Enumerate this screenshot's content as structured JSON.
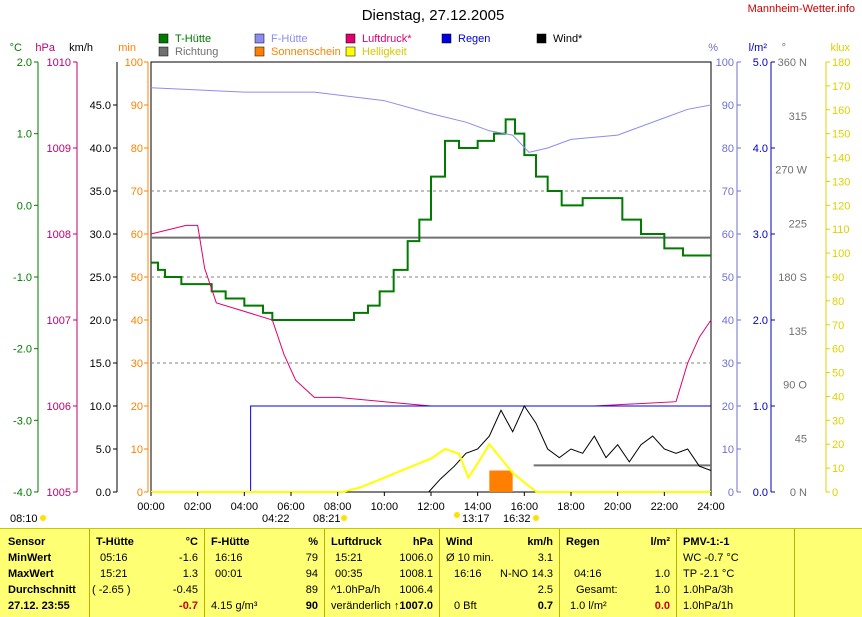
{
  "header": {
    "title": "Dienstag, 27.12.2005",
    "site": "Mannheim-Wetter.info"
  },
  "legend": [
    {
      "label": "T-Hütte",
      "color": "#007a00"
    },
    {
      "label": "Richtung",
      "color": "#707070"
    },
    {
      "label": "F-Hütte",
      "color": "#8c8cf0"
    },
    {
      "label": "Sonnenschein",
      "color": "#ff8000"
    },
    {
      "label": "Luftdruck*",
      "color": "#e0006e"
    },
    {
      "label": "Helligkeit",
      "color": "#ffff00"
    },
    {
      "label": "Regen",
      "color": "#0000e0"
    },
    {
      "label": "Wind*",
      "color": "#000000"
    }
  ],
  "axes": {
    "celsius": {
      "unit": "°C",
      "ticks": [
        "2.0",
        "1.0",
        "0.0",
        "-1.0",
        "-2.0",
        "-3.0",
        "-4.0"
      ],
      "color": "#007a00"
    },
    "hpa": {
      "unit": "hPa",
      "ticks": [
        "1010",
        "1009",
        "1008",
        "1007",
        "1006",
        "1005"
      ],
      "color": "#c00070"
    },
    "kmh": {
      "unit": "km/h",
      "ticks": [
        "45.0",
        "40.0",
        "35.0",
        "30.0",
        "25.0",
        "20.0",
        "15.0",
        "10.0",
        "5.0",
        "0.0"
      ],
      "color": "#000000"
    },
    "min": {
      "unit": "min",
      "ticks": [
        "100",
        "90",
        "80",
        "70",
        "60",
        "50",
        "40",
        "30",
        "20",
        "10",
        "0"
      ],
      "color": "#ff8000"
    },
    "pct": {
      "unit": "%",
      "ticks": [
        "100",
        "90",
        "80",
        "70",
        "60",
        "50",
        "40",
        "30",
        "20",
        "10",
        "0"
      ],
      "color": "#7070d0"
    },
    "lm2": {
      "unit": "l/m²",
      "ticks": [
        "5.0",
        "4.0",
        "3.0",
        "2.0",
        "1.0",
        "0.0"
      ],
      "color": "#0000c0"
    },
    "deg": {
      "unit": "°",
      "ticks": [
        "360 N",
        "315",
        "270 W",
        "225",
        "180 S",
        "135",
        "90 O",
        "45",
        "0 N"
      ],
      "color": "#707070"
    },
    "klux": {
      "unit": "klux",
      "ticks": [
        "180",
        "170",
        "160",
        "150",
        "140",
        "130",
        "120",
        "110",
        "100",
        "90",
        "80",
        "70",
        "60",
        "50",
        "40",
        "30",
        "20",
        "10",
        "0"
      ],
      "color": "#e0d000"
    },
    "time_ticks": [
      "00:00",
      "02:00",
      "04:00",
      "06:00",
      "08:00",
      "10:00",
      "12:00",
      "14:00",
      "16:00",
      "18:00",
      "20:00",
      "22:00",
      "24:00"
    ]
  },
  "sun_markers": {
    "civil_dawn": "08:10",
    "sunrise": "08:21",
    "sunset": "16:32",
    "rain_start": "04:22",
    "solar_noon": "13:17"
  },
  "chart_data": {
    "type": "line",
    "x_unit": "hours",
    "x_range": [
      0,
      24
    ],
    "series": [
      {
        "name": "T-Hütte",
        "axis": "celsius",
        "range": [
          -4,
          2
        ],
        "points": [
          [
            0,
            -0.8
          ],
          [
            0.3,
            -0.9
          ],
          [
            0.6,
            -1.0
          ],
          [
            1.0,
            -1.0
          ],
          [
            1.3,
            -1.1
          ],
          [
            2.0,
            -1.1
          ],
          [
            2.6,
            -1.2
          ],
          [
            3.2,
            -1.3
          ],
          [
            4.0,
            -1.4
          ],
          [
            4.8,
            -1.5
          ],
          [
            5.2,
            -1.6
          ],
          [
            6.0,
            -1.6
          ],
          [
            7.0,
            -1.6
          ],
          [
            8.0,
            -1.6
          ],
          [
            8.7,
            -1.5
          ],
          [
            9.3,
            -1.4
          ],
          [
            9.8,
            -1.2
          ],
          [
            10.4,
            -0.9
          ],
          [
            11.0,
            -0.5
          ],
          [
            11.5,
            -0.2
          ],
          [
            12.0,
            0.4
          ],
          [
            12.6,
            0.9
          ],
          [
            13.2,
            0.8
          ],
          [
            14.0,
            0.9
          ],
          [
            14.7,
            1.0
          ],
          [
            15.2,
            1.2
          ],
          [
            15.6,
            1.0
          ],
          [
            16.0,
            0.7
          ],
          [
            16.5,
            0.4
          ],
          [
            17.0,
            0.2
          ],
          [
            17.6,
            0.0
          ],
          [
            18.5,
            0.1
          ],
          [
            19.5,
            0.1
          ],
          [
            20.2,
            -0.2
          ],
          [
            21.0,
            -0.4
          ],
          [
            22.0,
            -0.6
          ],
          [
            22.8,
            -0.7
          ],
          [
            24,
            -0.7
          ]
        ]
      },
      {
        "name": "F-Hütte",
        "axis": "pct",
        "range": [
          0,
          100
        ],
        "points": [
          [
            0,
            94
          ],
          [
            4,
            93
          ],
          [
            7,
            93
          ],
          [
            10,
            91
          ],
          [
            12,
            88
          ],
          [
            13.5,
            86
          ],
          [
            14.5,
            84
          ],
          [
            15.5,
            83
          ],
          [
            16.2,
            79
          ],
          [
            17.0,
            80
          ],
          [
            18,
            82
          ],
          [
            20,
            83
          ],
          [
            22,
            87
          ],
          [
            23,
            89
          ],
          [
            24,
            90
          ]
        ]
      },
      {
        "name": "Luftdruck*",
        "axis": "hpa",
        "range": [
          1005,
          1010
        ],
        "points": [
          [
            0,
            1008.0
          ],
          [
            1.5,
            1008.1
          ],
          [
            2.0,
            1008.1
          ],
          [
            2.3,
            1007.6
          ],
          [
            2.8,
            1007.2
          ],
          [
            4.0,
            1007.1
          ],
          [
            5.2,
            1007.0
          ],
          [
            5.7,
            1006.6
          ],
          [
            6.2,
            1006.3
          ],
          [
            7.0,
            1006.1
          ],
          [
            8.0,
            1006.1
          ],
          [
            10.0,
            1006.05
          ],
          [
            12.0,
            1006.0
          ],
          [
            14.0,
            1006.0
          ],
          [
            17.0,
            1006.0
          ],
          [
            19.0,
            1006.0
          ],
          [
            22.5,
            1006.05
          ],
          [
            23.0,
            1006.5
          ],
          [
            23.5,
            1006.8
          ],
          [
            24,
            1007.0
          ]
        ]
      },
      {
        "name": "Regen",
        "axis": "lm2",
        "range": [
          0,
          5
        ],
        "points": [
          [
            0,
            0
          ],
          [
            4.22,
            0
          ],
          [
            4.27,
            1.0
          ],
          [
            24,
            1.0
          ]
        ]
      },
      {
        "name": "Wind*",
        "axis": "kmh",
        "range": [
          0,
          50
        ],
        "points": [
          [
            11.9,
            0
          ],
          [
            12.4,
            1.5
          ],
          [
            13.0,
            3.0
          ],
          [
            13.5,
            4.5
          ],
          [
            14.0,
            5.0
          ],
          [
            14.5,
            6.5
          ],
          [
            15.0,
            9.5
          ],
          [
            15.5,
            7.0
          ],
          [
            16.0,
            10.0
          ],
          [
            16.5,
            8.0
          ],
          [
            17.0,
            5.0
          ],
          [
            17.5,
            4.0
          ],
          [
            18.0,
            5.0
          ],
          [
            18.5,
            4.5
          ],
          [
            19.0,
            6.5
          ],
          [
            19.5,
            4.0
          ],
          [
            20.0,
            5.5
          ],
          [
            20.5,
            3.5
          ],
          [
            21.0,
            5.5
          ],
          [
            21.5,
            6.5
          ],
          [
            22.0,
            5.0
          ],
          [
            22.5,
            4.5
          ],
          [
            23.0,
            5.0
          ],
          [
            23.5,
            3.0
          ],
          [
            24,
            2.5
          ]
        ]
      },
      {
        "name": "Helligkeit",
        "axis": "klux",
        "range": [
          0,
          180
        ],
        "points": [
          [
            0,
            0
          ],
          [
            8.21,
            0
          ],
          [
            9.0,
            2
          ],
          [
            10.0,
            6
          ],
          [
            11.0,
            10
          ],
          [
            12.0,
            14
          ],
          [
            12.6,
            18
          ],
          [
            13.2,
            16
          ],
          [
            13.6,
            6
          ],
          [
            14.0,
            12
          ],
          [
            14.5,
            20
          ],
          [
            15.0,
            14
          ],
          [
            15.5,
            8
          ],
          [
            16.0,
            4
          ],
          [
            16.53,
            0
          ],
          [
            24,
            0
          ]
        ]
      }
    ],
    "bars": [
      {
        "name": "Sonnenschein",
        "axis": "min",
        "range": [
          0,
          100
        ],
        "x_start": 14.5,
        "x_end": 15.5,
        "value": 5
      }
    ],
    "reference_lines": [
      {
        "axis": "celsius",
        "value": -0.45
      },
      {
        "axis": "kmh",
        "value": 3.1,
        "x_start": 16.4,
        "x_end": 24
      }
    ]
  },
  "table": {
    "sensor": {
      "h": "Sensor",
      "rows": [
        "MinWert",
        "MaxWert",
        "Durchschnitt",
        "27.12. 23:55"
      ]
    },
    "thuette": {
      "h": "T-Hütte",
      "unit": "°C",
      "times": [
        "05:16",
        "15:21",
        "( -2.65 )",
        ""
      ],
      "vals": [
        "-1.6",
        "1.3",
        "-0.45",
        "-0.7"
      ]
    },
    "fhuette": {
      "h": "F-Hütte",
      "unit": "%",
      "times": [
        "16:16",
        "00:01",
        "",
        "4.15 g/m³"
      ],
      "vals": [
        "79",
        "94",
        "89",
        "90"
      ]
    },
    "luftdruck": {
      "h": "Luftdruck",
      "unit": "hPa",
      "times": [
        "15:21",
        "00:35",
        "^1.0hPa/h",
        "veränderlich"
      ],
      "vals": [
        "1006.0",
        "1008.1",
        "1006.4",
        "↑1007.0"
      ]
    },
    "wind": {
      "h": "Wind",
      "unit": "km/h",
      "times": [
        "Ø 10 min.",
        "16:16",
        "",
        ""
      ],
      "dirs": [
        "",
        "N-NO",
        "",
        "0 Bft"
      ],
      "vals": [
        "3.1",
        "14.3",
        "2.5",
        "0.7"
      ]
    },
    "regen": {
      "h": "Regen",
      "unit": "l/m²",
      "times": [
        "",
        "04:16",
        "Gesamt:",
        "1.0 l/m²"
      ],
      "vals": [
        "",
        "1.0",
        "1.0",
        "0.0"
      ]
    },
    "pmv": {
      "h": "PMV-1:-1",
      "rows": [
        "WC -0.7 °C",
        "TP -2.1 °C",
        "1.0hPa/3h",
        "1.0hPa/1h"
      ]
    }
  }
}
